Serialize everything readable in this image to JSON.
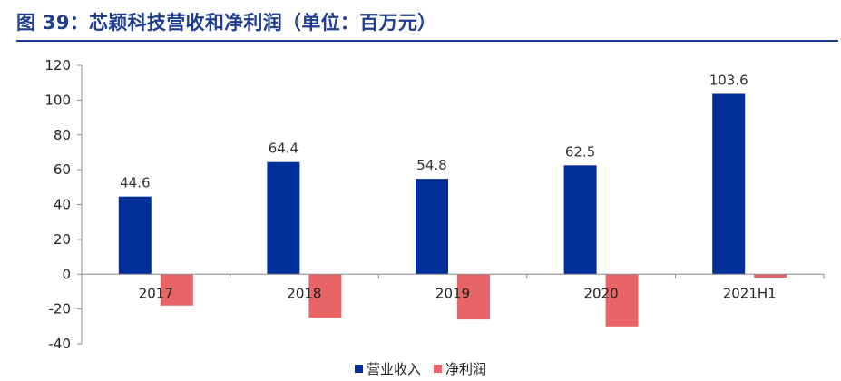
{
  "figure_title": "图 39：芯颖科技营收和净利润（单位：百万元）",
  "chart_data": {
    "type": "bar",
    "categories": [
      "2017",
      "2018",
      "2019",
      "2020",
      "2021H1"
    ],
    "series": [
      {
        "name": "营业收入",
        "color": "#002f99",
        "values": [
          44.6,
          64.4,
          54.8,
          62.5,
          103.6
        ],
        "value_labels": [
          "44.6",
          "64.4",
          "54.8",
          "62.5",
          "103.6"
        ]
      },
      {
        "name": "净利润",
        "color": "#e86467",
        "values": [
          -18,
          -25,
          -26,
          -30,
          -2
        ]
      }
    ],
    "ylim": [
      -40,
      120
    ],
    "yticks": [
      -40,
      -20,
      0,
      20,
      40,
      60,
      80,
      100,
      120
    ],
    "title": "",
    "xlabel": "",
    "ylabel": "",
    "grid": false,
    "legend_position": "bottom-center"
  }
}
